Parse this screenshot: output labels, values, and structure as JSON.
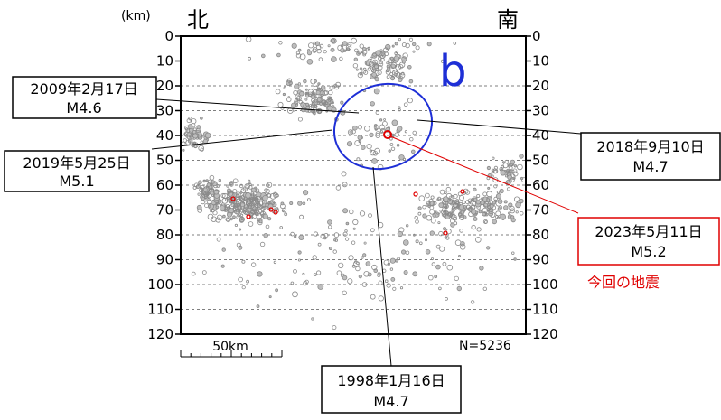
{
  "chart_data": {
    "type": "scatter",
    "depth_unit": "(km)",
    "direction_left": "北",
    "direction_right": "南",
    "depth_ticks": [
      "0",
      "10",
      "20",
      "30",
      "40",
      "50",
      "60",
      "70",
      "80",
      "90",
      "100",
      "110",
      "120"
    ],
    "depth_range": [
      0,
      120
    ],
    "panel_label": "b",
    "count_label": "N=5236",
    "scale_label": "50km",
    "annotations": [
      {
        "date": "2009年2月17日",
        "magnitude": "M4.6",
        "depth": 28
      },
      {
        "date": "2019年5月25日",
        "magnitude": "M5.1",
        "depth": 37
      },
      {
        "date": "2018年9月10日",
        "magnitude": "M4.7",
        "depth": 32
      },
      {
        "date": "2023年5月11日",
        "magnitude": "M5.2",
        "depth": 40,
        "note": "今回の地震"
      },
      {
        "date": "1998年1月16日",
        "magnitude": "M4.7",
        "depth": 52
      }
    ],
    "colors": {
      "event": "#8a8a8a",
      "focus": "#e00000",
      "ellipse": "#1e2fd6",
      "label_b": "#1e2fd6"
    }
  }
}
